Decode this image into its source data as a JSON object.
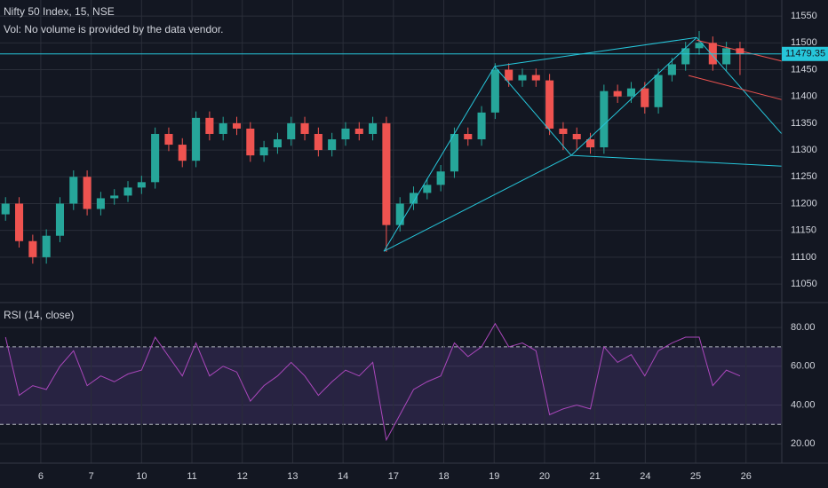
{
  "chart_data": [
    {
      "type": "candlestick",
      "title": "Nifty 50 Index, 15, NSE",
      "subtitle": "Vol: No volume is provided by the data vendor.",
      "x": [
        -0.7,
        -0.43,
        -0.16,
        0.11,
        0.38,
        0.65,
        0.92,
        1.19,
        1.46,
        1.73,
        2,
        2.27,
        2.54,
        2.81,
        3.08,
        3.35,
        3.62,
        3.89,
        4.16,
        4.43,
        4.7,
        4.97,
        5.24,
        5.51,
        5.78,
        6.05,
        6.32,
        6.59,
        6.86,
        7.13,
        7.4,
        7.67,
        7.94,
        8.21,
        8.48,
        8.75,
        9.02,
        9.29,
        9.56,
        9.83,
        10.1,
        10.37,
        10.64,
        10.91,
        11.18,
        11.45,
        11.72,
        11.99,
        12.26,
        12.53,
        12.8,
        13.07,
        13.34,
        13.61,
        13.88
      ],
      "open": [
        11180,
        11200,
        11130,
        11100,
        11140,
        11200,
        11250,
        11190,
        11210,
        11215,
        11230,
        11240,
        11330,
        11310,
        11280,
        11360,
        11330,
        11350,
        11340,
        11290,
        11305,
        11320,
        11350,
        11330,
        11300,
        11320,
        11340,
        11330,
        11350,
        11160,
        11200,
        11220,
        11235,
        11260,
        11330,
        11320,
        11370,
        11450,
        11430,
        11440,
        11430,
        11340,
        11330,
        11320,
        11305,
        11410,
        11400,
        11415,
        11380,
        11440,
        11460,
        11490,
        11500,
        11460,
        11490
      ],
      "high": [
        11212,
        11212,
        11142,
        11152,
        11212,
        11262,
        11262,
        11222,
        11227,
        11242,
        11252,
        11342,
        11342,
        11322,
        11372,
        11372,
        11362,
        11362,
        11352,
        11317,
        11332,
        11362,
        11362,
        11342,
        11332,
        11352,
        11352,
        11362,
        11362,
        11212,
        11232,
        11247,
        11272,
        11342,
        11342,
        11382,
        11462,
        11462,
        11452,
        11452,
        11442,
        11352,
        11342,
        11332,
        11422,
        11422,
        11427,
        11427,
        11452,
        11472,
        11502,
        11522,
        11512,
        11502,
        11502
      ],
      "low": [
        11168,
        11118,
        11088,
        11088,
        11128,
        11188,
        11178,
        11178,
        11198,
        11203,
        11218,
        11228,
        11298,
        11268,
        11268,
        11318,
        11318,
        11328,
        11278,
        11278,
        11293,
        11308,
        11318,
        11288,
        11288,
        11308,
        11318,
        11318,
        11110,
        11148,
        11188,
        11208,
        11223,
        11248,
        11308,
        11308,
        11358,
        11418,
        11418,
        11418,
        11328,
        11300,
        11300,
        11293,
        11293,
        11388,
        11388,
        11368,
        11368,
        11428,
        11448,
        11478,
        11448,
        11448,
        11440
      ],
      "close": [
        11200,
        11130,
        11100,
        11140,
        11200,
        11250,
        11190,
        11210,
        11215,
        11230,
        11240,
        11330,
        11310,
        11280,
        11360,
        11330,
        11350,
        11340,
        11290,
        11305,
        11320,
        11350,
        11330,
        11300,
        11320,
        11340,
        11330,
        11350,
        11160,
        11200,
        11220,
        11235,
        11260,
        11330,
        11320,
        11370,
        11450,
        11430,
        11440,
        11430,
        11340,
        11330,
        11320,
        11305,
        11410,
        11400,
        11415,
        11380,
        11440,
        11460,
        11490,
        11500,
        11460,
        11490,
        11479.35
      ],
      "up_color": "#26a69a",
      "down_color": "#ef5350",
      "last_price": 11479.35,
      "last_color": "#26c6da",
      "drawings": [
        {
          "color": "#26c6da",
          "x": [
            6.81,
            9.01,
            13.02
          ],
          "y": [
            11111,
            11456,
            11510
          ]
        },
        {
          "color": "#26c6da",
          "x": [
            6.81,
            10.53,
            13.02
          ],
          "y": [
            11111,
            11290,
            11510
          ]
        },
        {
          "color": "#26c6da",
          "x": [
            9.01,
            10.53
          ],
          "y": [
            11456,
            11290
          ]
        },
        {
          "color": "#26c6da",
          "x": [
            13.02,
            14.71
          ],
          "y": [
            11510,
            11330
          ]
        },
        {
          "color": "#26c6da",
          "x": [
            10.53,
            14.71
          ],
          "y": [
            11290,
            11270
          ]
        },
        {
          "color": "#ef5350",
          "x": [
            13.02,
            14.71
          ],
          "y": [
            11505,
            11466
          ]
        },
        {
          "color": "#ef5350",
          "x": [
            12.86,
            14.71
          ],
          "y": [
            11439,
            11394
          ]
        }
      ],
      "xlim": [
        -0.81,
        14.71
      ],
      "ylim": [
        11017,
        11580
      ],
      "yticks": [
        11550,
        11500,
        11450,
        11400,
        11350,
        11300,
        11250,
        11200,
        11150,
        11100,
        11050
      ],
      "grid": true
    },
    {
      "type": "line",
      "title": "RSI (14, close)",
      "x": [
        -0.7,
        -0.43,
        -0.16,
        0.11,
        0.38,
        0.65,
        0.92,
        1.19,
        1.46,
        1.73,
        2,
        2.27,
        2.54,
        2.81,
        3.08,
        3.35,
        3.62,
        3.89,
        4.16,
        4.43,
        4.7,
        4.97,
        5.24,
        5.51,
        5.78,
        6.05,
        6.32,
        6.59,
        6.86,
        7.13,
        7.4,
        7.67,
        7.94,
        8.21,
        8.48,
        8.75,
        9.02,
        9.29,
        9.56,
        9.83,
        10.1,
        10.37,
        10.64,
        10.91,
        11.18,
        11.45,
        11.72,
        11.99,
        12.26,
        12.53,
        12.8,
        13.07,
        13.34,
        13.61,
        13.88
      ],
      "series": [
        {
          "color": "#ab47bc",
          "values": [
            75,
            45,
            50,
            48,
            60,
            68,
            50,
            55,
            52,
            56,
            58,
            75,
            65,
            55,
            72,
            55,
            60,
            57,
            42,
            50,
            55,
            62,
            55,
            45,
            52,
            58,
            55,
            62,
            22,
            35,
            48,
            52,
            55,
            72,
            65,
            70,
            82,
            70,
            72,
            68,
            35,
            38,
            40,
            38,
            70,
            62,
            66,
            55,
            68,
            72,
            75,
            75,
            50,
            58,
            55
          ]
        }
      ],
      "band": [
        30,
        70
      ],
      "band_color": "#7e57c2",
      "xlim": [
        -0.81,
        14.71
      ],
      "ylim": [
        10,
        92.4
      ],
      "yticks": [
        {
          "value": 80,
          "label": "80.00"
        },
        {
          "value": 60,
          "label": "60.00"
        },
        {
          "value": 40,
          "label": "40.00"
        },
        {
          "value": 20,
          "label": "20.00"
        }
      ],
      "xticks": [
        {
          "value": 0,
          "label": "6"
        },
        {
          "value": 1,
          "label": "7"
        },
        {
          "value": 2,
          "label": "10"
        },
        {
          "value": 3,
          "label": "11"
        },
        {
          "value": 4,
          "label": "12"
        },
        {
          "value": 5,
          "label": "13"
        },
        {
          "value": 6,
          "label": "14"
        },
        {
          "value": 7,
          "label": "17"
        },
        {
          "value": 8,
          "label": "18"
        },
        {
          "value": 9,
          "label": "19"
        },
        {
          "value": 10,
          "label": "20"
        },
        {
          "value": 11,
          "label": "21"
        },
        {
          "value": 12,
          "label": "24"
        },
        {
          "value": 13,
          "label": "25"
        },
        {
          "value": 14,
          "label": "26"
        }
      ],
      "grid": true
    }
  ]
}
